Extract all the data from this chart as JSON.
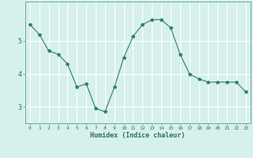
{
  "x": [
    0,
    1,
    2,
    3,
    4,
    5,
    6,
    7,
    8,
    9,
    10,
    11,
    12,
    13,
    14,
    15,
    16,
    17,
    18,
    19,
    20,
    21,
    22,
    23
  ],
  "y": [
    5.5,
    5.2,
    4.7,
    4.6,
    4.3,
    3.6,
    3.7,
    2.95,
    2.85,
    3.6,
    4.5,
    5.15,
    5.5,
    5.65,
    5.65,
    5.4,
    4.6,
    4.0,
    3.85,
    3.75,
    3.75,
    3.75,
    3.75,
    3.45
  ],
  "line_color": "#2e7d6e",
  "marker": "*",
  "marker_size": 3,
  "bg_color": "#d6f0ee",
  "grid_color": "#ffffff",
  "spine_color": "#5a9e8e",
  "tick_color": "#2e6e5e",
  "xlabel": "Humidex (Indice chaleur)",
  "ylim": [
    2.5,
    6.2
  ],
  "yticks": [
    3,
    4,
    5
  ],
  "xlim": [
    -0.5,
    23.5
  ],
  "fig_width": 3.2,
  "fig_height": 2.0,
  "dpi": 100
}
